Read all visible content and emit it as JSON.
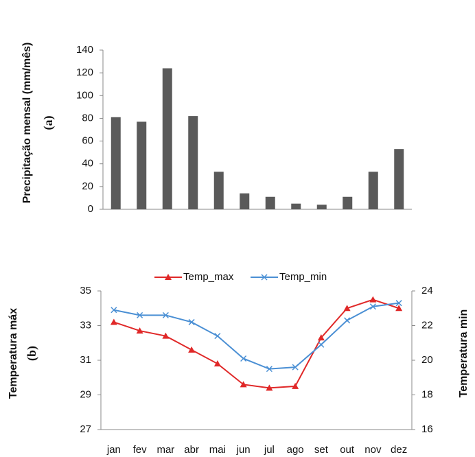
{
  "chart_data": [
    {
      "type": "bar",
      "ylabel": "Precipitação mensal  (mm/mês)",
      "panel_label": "(a)",
      "values": [
        81,
        77,
        124,
        82,
        33,
        14,
        11,
        5,
        4,
        11,
        33,
        53
      ],
      "color": "#5a5a5a",
      "ylim": [
        0,
        140
      ],
      "yticks": [
        0,
        20,
        40,
        60,
        80,
        100,
        120,
        140
      ]
    },
    {
      "type": "line",
      "ylabel": "Temperatura máx",
      "y2label": "Temperatura min",
      "panel_label": "(b)",
      "categories": [
        "jan",
        "fev",
        "mar",
        "abr",
        "mai",
        "jun",
        "jul",
        "ago",
        "set",
        "out",
        "nov",
        "dez"
      ],
      "series": [
        {
          "name": "Temp_max",
          "color": "#e02828",
          "marker": "triangle",
          "values": [
            33.2,
            32.7,
            32.4,
            31.6,
            30.8,
            29.6,
            29.4,
            29.5,
            32.3,
            34.0,
            34.5,
            34.0
          ]
        },
        {
          "name": "Temp_min",
          "color": "#4a8fd4",
          "marker": "x",
          "axis": "y2",
          "values": [
            22.9,
            22.6,
            22.6,
            22.2,
            21.4,
            20.1,
            19.5,
            19.6,
            20.9,
            22.3,
            23.1,
            23.3
          ]
        }
      ],
      "ylim": [
        27,
        35
      ],
      "yticks": [
        27,
        29,
        31,
        33,
        35
      ],
      "y2lim": [
        16,
        24
      ],
      "y2ticks": [
        16,
        18,
        20,
        22,
        24
      ],
      "legend": "top"
    }
  ]
}
